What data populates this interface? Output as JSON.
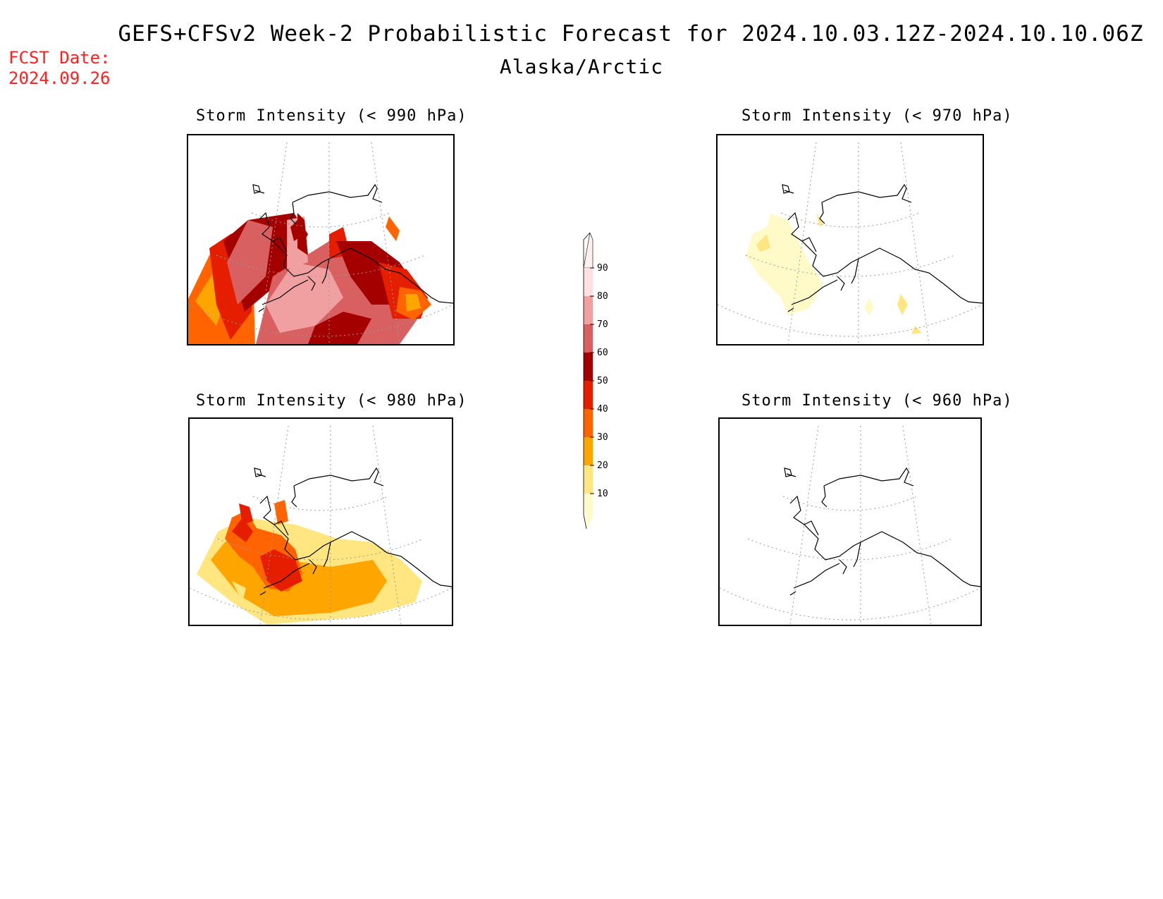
{
  "title": "GEFS+CFSv2 Week-2 Probabilistic Forecast for 2024.10.03.12Z-2024.10.10.06Z",
  "subtitle": "Alaska/Arctic",
  "fcst": {
    "label": "FCST Date:",
    "value": "2024.09.26"
  },
  "panels": [
    {
      "title": "Storm Intensity (< 990 hPa)",
      "threshold_hPa": 990
    },
    {
      "title": "Storm Intensity (< 970 hPa)",
      "threshold_hPa": 970
    },
    {
      "title": "Storm Intensity (< 980 hPa)",
      "threshold_hPa": 980
    },
    {
      "title": "Storm Intensity (< 960 hPa)",
      "threshold_hPa": 960
    }
  ],
  "colorbar": {
    "levels": [
      "10",
      "20",
      "30",
      "40",
      "50",
      "60",
      "70",
      "80",
      "90"
    ],
    "colors": [
      "#fffac8",
      "#ffe680",
      "#ffa500",
      "#ff6400",
      "#e61e00",
      "#a50000",
      "#d86060",
      "#f0a0a0",
      "#fde0e0",
      "#fff0f0"
    ]
  }
}
